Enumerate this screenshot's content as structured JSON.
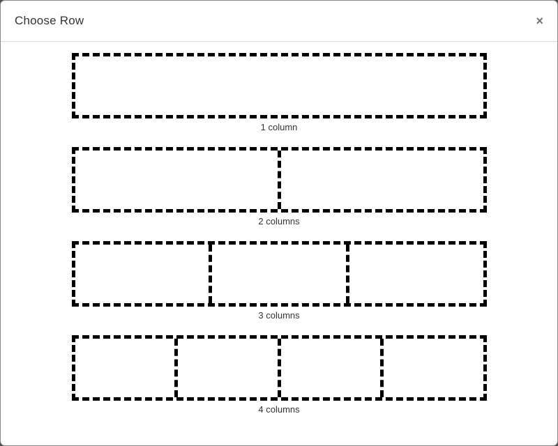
{
  "modal": {
    "title": "Choose Row",
    "close_icon_glyph": "×"
  },
  "options": [
    {
      "label": "1 column",
      "columns": 1
    },
    {
      "label": "2 columns",
      "columns": 2
    },
    {
      "label": "3 columns",
      "columns": 3
    },
    {
      "label": "4 columns",
      "columns": 4
    }
  ],
  "colors": {
    "dash": "#000000",
    "backdrop": "#4d4d4d",
    "modal_background": "#ffffff",
    "header_divider": "#dddddd",
    "title_text": "#333333",
    "label_text": "#333333",
    "close_icon": "#757575"
  }
}
